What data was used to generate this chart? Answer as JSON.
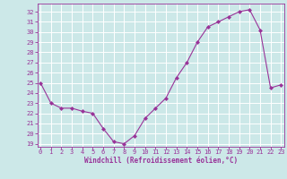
{
  "x_actual": [
    0,
    1,
    2,
    3,
    4,
    5,
    6,
    7,
    8,
    9,
    10,
    11,
    12,
    13,
    14,
    15,
    16,
    17,
    18,
    19,
    20,
    21,
    22,
    23
  ],
  "y_actual": [
    25.0,
    23.0,
    22.5,
    22.5,
    22.2,
    22.0,
    20.5,
    19.2,
    19.0,
    19.8,
    21.5,
    22.5,
    23.5,
    25.5,
    27.0,
    29.0,
    30.5,
    31.0,
    31.5,
    32.0,
    32.2,
    30.2,
    24.5,
    24.8
  ],
  "xlim": [
    -0.3,
    23.3
  ],
  "ylim": [
    18.7,
    32.8
  ],
  "yticks": [
    19,
    20,
    21,
    22,
    23,
    24,
    25,
    26,
    27,
    28,
    29,
    30,
    31,
    32
  ],
  "xticks": [
    0,
    1,
    2,
    3,
    4,
    5,
    6,
    7,
    8,
    9,
    10,
    11,
    12,
    13,
    14,
    15,
    16,
    17,
    18,
    19,
    20,
    21,
    22,
    23
  ],
  "xlabel": "Windchill (Refroidissement éolien,°C)",
  "line_color": "#993399",
  "marker": "D",
  "marker_size": 2,
  "bg_color": "#cce8e8",
  "grid_color": "#ffffff",
  "tick_color": "#993399",
  "label_color": "#993399",
  "font_family": "monospace",
  "tick_fontsize": 5.0,
  "xlabel_fontsize": 5.5,
  "linewidth": 0.8
}
